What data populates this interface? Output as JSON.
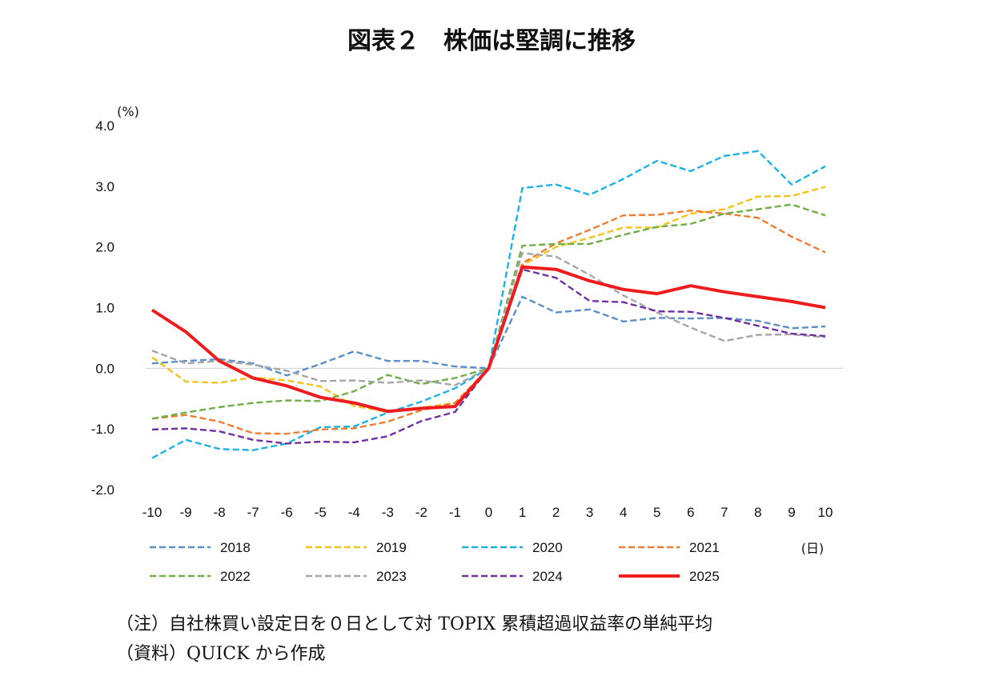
{
  "title": "図表２　株価は堅調に推移",
  "notes": {
    "note": "（注）自社株買い設定日を０日として対 TOPIX 累積超過収益率の単純平均",
    "source": "（資料）QUICK から作成"
  },
  "chart_data": {
    "type": "line",
    "y_unit": "(%)",
    "x_unit": "(日)",
    "ylim": [
      -2.0,
      4.0
    ],
    "y_ticks": [
      "4.0",
      "3.0",
      "2.0",
      "1.0",
      "0.0",
      "-1.0",
      "-2.0"
    ],
    "x": [
      -10,
      -9,
      -8,
      -7,
      -6,
      -5,
      -4,
      -3,
      -2,
      -1,
      0,
      1,
      2,
      3,
      4,
      5,
      6,
      7,
      8,
      9,
      10
    ],
    "x_ticks": [
      "-10",
      "-9",
      "-8",
      "-7",
      "-6",
      "-5",
      "-4",
      "-3",
      "-2",
      "-1",
      "0",
      "1",
      "2",
      "3",
      "4",
      "5",
      "6",
      "7",
      "8",
      "9",
      "10"
    ],
    "grid": false,
    "legend_position": "bottom",
    "series": [
      {
        "name": "2018",
        "color": "#5b8fc9",
        "style": "dashed",
        "values": [
          0.08,
          0.12,
          0.15,
          0.08,
          -0.12,
          0.07,
          0.28,
          0.12,
          0.12,
          0.03,
          0.0,
          1.18,
          0.92,
          0.97,
          0.77,
          0.83,
          0.82,
          0.83,
          0.78,
          0.66,
          0.69
        ]
      },
      {
        "name": "2019",
        "color": "#f5c21a",
        "style": "dashed",
        "values": [
          0.18,
          -0.22,
          -0.24,
          -0.15,
          -0.2,
          -0.3,
          -0.62,
          -0.72,
          -0.65,
          -0.57,
          0.0,
          1.7,
          2.0,
          2.15,
          2.32,
          2.32,
          2.55,
          2.62,
          2.83,
          2.84,
          2.99
        ]
      },
      {
        "name": "2020",
        "color": "#1cb2e2",
        "style": "dashed",
        "values": [
          -1.48,
          -1.18,
          -1.33,
          -1.35,
          -1.24,
          -0.97,
          -0.96,
          -0.73,
          -0.55,
          -0.33,
          0.0,
          2.97,
          3.03,
          2.86,
          3.12,
          3.42,
          3.25,
          3.5,
          3.58,
          3.03,
          3.33
        ]
      },
      {
        "name": "2021",
        "color": "#ed7d31",
        "style": "dashed",
        "values": [
          -0.83,
          -0.77,
          -0.88,
          -1.07,
          -1.08,
          -1.01,
          -0.99,
          -0.88,
          -0.69,
          -0.57,
          0.0,
          1.73,
          2.06,
          2.28,
          2.52,
          2.53,
          2.6,
          2.55,
          2.48,
          2.17,
          1.91
        ]
      },
      {
        "name": "2022",
        "color": "#70ad47",
        "style": "dashed",
        "values": [
          -0.83,
          -0.73,
          -0.64,
          -0.57,
          -0.53,
          -0.54,
          -0.38,
          -0.11,
          -0.26,
          -0.16,
          0.0,
          2.02,
          2.05,
          2.05,
          2.2,
          2.33,
          2.38,
          2.55,
          2.62,
          2.7,
          2.52
        ]
      },
      {
        "name": "2023",
        "color": "#a6a6a6",
        "style": "dashed",
        "values": [
          0.29,
          0.08,
          0.12,
          0.06,
          -0.04,
          -0.21,
          -0.2,
          -0.24,
          -0.2,
          -0.28,
          0.0,
          1.9,
          1.84,
          1.54,
          1.2,
          0.92,
          0.67,
          0.45,
          0.55,
          0.56,
          0.51
        ]
      },
      {
        "name": "2024",
        "color": "#7030a0",
        "style": "dashed",
        "values": [
          -1.01,
          -0.99,
          -1.04,
          -1.18,
          -1.24,
          -1.21,
          -1.22,
          -1.12,
          -0.87,
          -0.72,
          0.0,
          1.63,
          1.49,
          1.11,
          1.09,
          0.94,
          0.93,
          0.83,
          0.7,
          0.57,
          0.53
        ]
      },
      {
        "name": "2025",
        "color": "#ee1c1c",
        "style": "solid",
        "values": [
          0.96,
          0.6,
          0.12,
          -0.16,
          -0.29,
          -0.48,
          -0.57,
          -0.71,
          -0.66,
          -0.63,
          0.0,
          1.67,
          1.63,
          1.44,
          1.3,
          1.23,
          1.36,
          1.26,
          1.18,
          1.1,
          1.0
        ]
      }
    ]
  }
}
